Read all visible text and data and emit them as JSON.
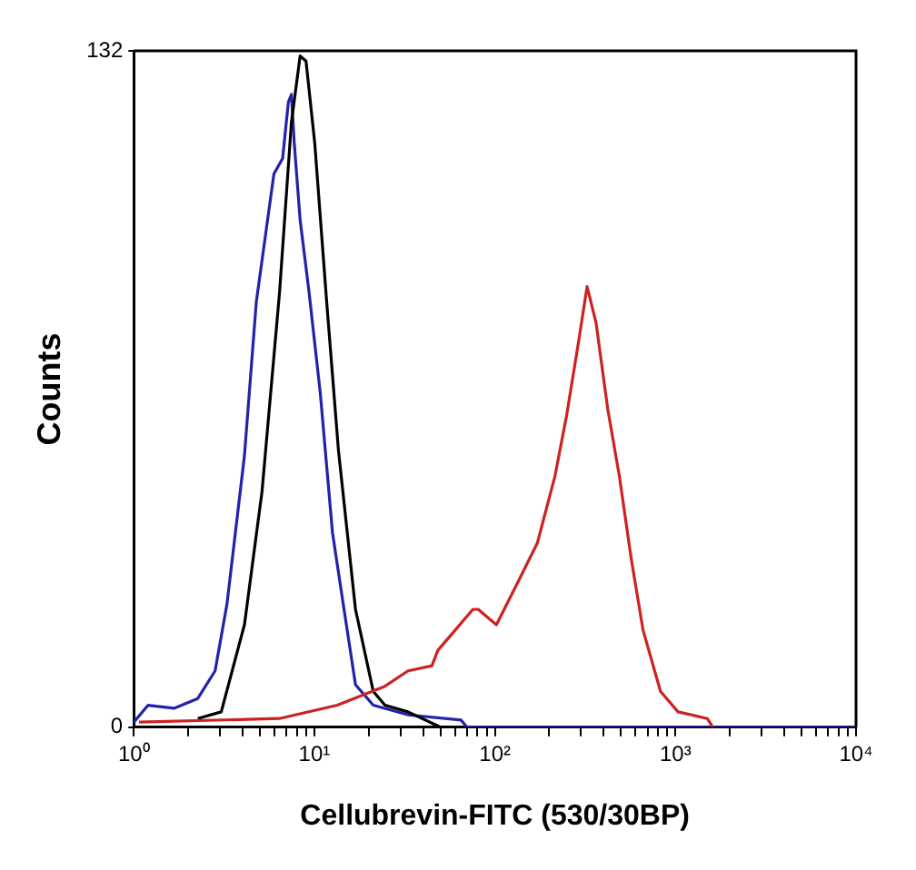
{
  "chart_data": {
    "type": "line",
    "xlabel": "Cellubrevin-FITC (530/30BP)",
    "ylabel": "Counts",
    "log": "x",
    "xlim": [
      1,
      10000
    ],
    "ylim": [
      0,
      132
    ],
    "yticks": [
      0,
      132
    ],
    "xticks": [
      {
        "value": 1,
        "label": "10⁰"
      },
      {
        "value": 2,
        "label": null
      },
      {
        "value": 3,
        "label": null
      },
      {
        "value": 4,
        "label": null
      },
      {
        "value": 5,
        "label": null
      },
      {
        "value": 6,
        "label": null
      },
      {
        "value": 7,
        "label": null
      },
      {
        "value": 8,
        "label": null
      },
      {
        "value": 9,
        "label": null
      },
      {
        "value": 10,
        "label": "10¹"
      },
      {
        "value": 20,
        "label": null
      },
      {
        "value": 30,
        "label": null
      },
      {
        "value": 40,
        "label": null
      },
      {
        "value": 50,
        "label": null
      },
      {
        "value": 60,
        "label": null
      },
      {
        "value": 70,
        "label": null
      },
      {
        "value": 80,
        "label": null
      },
      {
        "value": 90,
        "label": null
      },
      {
        "value": 100,
        "label": "10²"
      },
      {
        "value": 200,
        "label": null
      },
      {
        "value": 300,
        "label": null
      },
      {
        "value": 400,
        "label": null
      },
      {
        "value": 500,
        "label": null
      },
      {
        "value": 600,
        "label": null
      },
      {
        "value": 700,
        "label": null
      },
      {
        "value": 800,
        "label": null
      },
      {
        "value": 900,
        "label": null
      },
      {
        "value": 1000,
        "label": "10³"
      },
      {
        "value": 2000,
        "label": null
      },
      {
        "value": 3000,
        "label": null
      },
      {
        "value": 4000,
        "label": null
      },
      {
        "value": 5000,
        "label": null
      },
      {
        "value": 6000,
        "label": null
      },
      {
        "value": 7000,
        "label": null
      },
      {
        "value": 8000,
        "label": null
      },
      {
        "value": 9000,
        "label": null
      },
      {
        "value": 10000,
        "label": "10⁴"
      }
    ],
    "grid": false,
    "legend": false,
    "marker": "none",
    "line_style": "solid",
    "series": [
      {
        "color": "#cc2222",
        "x": [
          1.07,
          6.4,
          13.4,
          24.6,
          33,
          44.8,
          48.3,
          60.4,
          75.5,
          80.8,
          101.9,
          137,
          172,
          215,
          250,
          290,
          324,
          363,
          422,
          489,
          568,
          661,
          826,
          1033,
          1500,
          1610
        ],
        "values": [
          1,
          1.7,
          4.3,
          8,
          11,
          12,
          15,
          19,
          23,
          23,
          20,
          29,
          36,
          49,
          61,
          75,
          86,
          79,
          62,
          49,
          33,
          19,
          7,
          3,
          1.7,
          0
        ]
      },
      {
        "color": "#000000",
        "x": [
          2.26,
          3.05,
          4.1,
          5.13,
          6.42,
          7.46,
          8.34,
          8.99,
          10.05,
          11.7,
          13.6,
          16.9,
          21.2,
          24.6,
          33,
          50
        ],
        "values": [
          1.7,
          3,
          20,
          46,
          85,
          118,
          131,
          130,
          114,
          83,
          54,
          23,
          7,
          4.3,
          3,
          0
        ]
      },
      {
        "color": "#2222aa",
        "x": [
          1,
          1.2,
          1.67,
          2.26,
          2.82,
          3.28,
          4.1,
          4.77,
          5.97,
          6.67,
          7.18,
          7.46,
          7.74,
          8.34,
          9.34,
          10.8,
          12.6,
          14.6,
          16.9,
          21.2,
          33.2,
          65,
          70,
          10000
        ],
        "values": [
          1,
          4.3,
          3.7,
          5.6,
          11,
          24,
          53,
          83,
          108,
          111,
          122,
          123.5,
          114,
          99,
          85,
          65,
          38,
          23,
          8.3,
          4.3,
          2.4,
          1.4,
          0,
          0
        ]
      }
    ]
  }
}
